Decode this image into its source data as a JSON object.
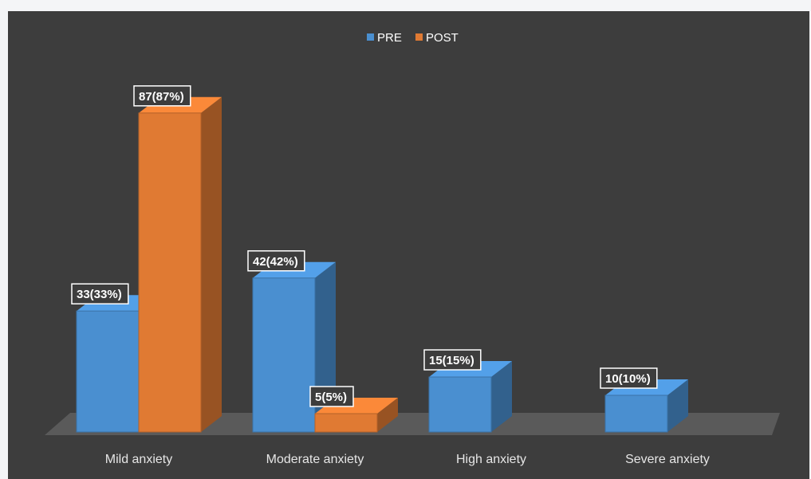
{
  "chart_data": {
    "type": "bar",
    "style": "3d-clustered",
    "categories": [
      "Mild anxiety",
      "Moderate anxiety",
      "High anxiety",
      "Severe anxiety"
    ],
    "series": [
      {
        "name": "PRE",
        "color": "#4a8fd0",
        "values": [
          33,
          42,
          15,
          10
        ],
        "labels": [
          "33(33%)",
          "42(42%)",
          "15(15%)",
          "10(10%)"
        ]
      },
      {
        "name": "POST",
        "color": "#e07a33",
        "values": [
          87,
          5,
          null,
          null
        ],
        "labels": [
          "87(87%)",
          "5(5%)",
          null,
          null
        ]
      }
    ],
    "ylim": [
      0,
      100
    ],
    "grid": false,
    "legend_position": "top-center",
    "background_color": "#3d3d3d"
  }
}
